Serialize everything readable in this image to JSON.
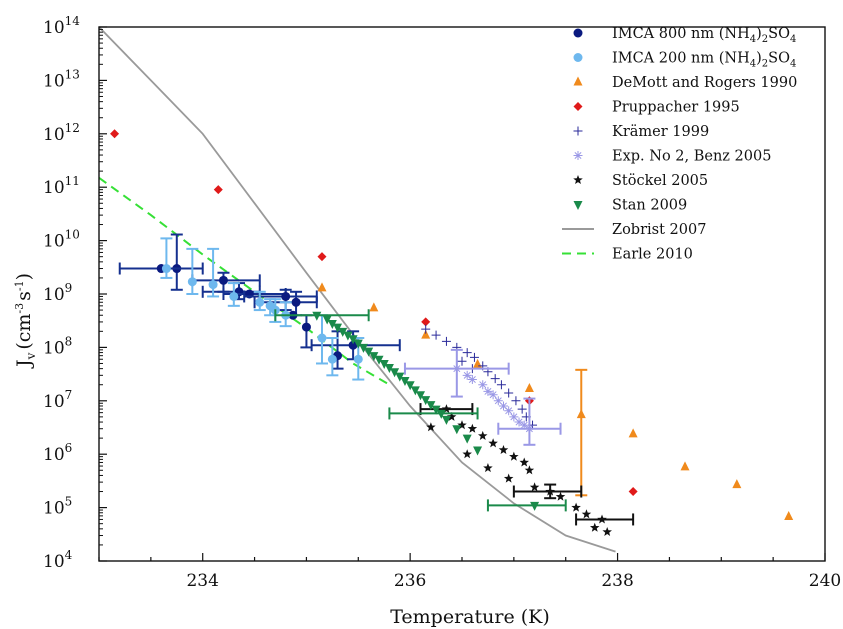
{
  "chart_data": {
    "type": "scatter",
    "xlabel": "Temperature (K)",
    "ylabel": {
      "main": "J",
      "sub": "v",
      "unit_open": "(cm",
      "unit_exp1": "-3",
      "unit_mid": "s",
      "unit_exp2": "-1",
      "unit_close": ")"
    },
    "xlim": [
      233,
      240
    ],
    "ylim_log10": [
      4,
      14
    ],
    "y_scale": "log",
    "x_ticks": [
      234,
      236,
      238,
      240
    ],
    "x_tick_labels": [
      "234",
      "236",
      "238",
      "240"
    ],
    "y_ticks_exp": [
      4,
      5,
      6,
      7,
      8,
      9,
      10,
      11,
      12,
      13,
      14
    ],
    "y_tick_base": "10",
    "grid": false,
    "legend_position": "top-right",
    "series": [
      {
        "name": "IMCA 800 nm (NH4)2SO4",
        "label": {
          "pre": "IMCA 800 nm (NH",
          "sub1": "4",
          "mid": ")",
          "sub2": "2",
          "post": "SO",
          "sub3": "4"
        },
        "marker": "circle",
        "color": "#0a1a80",
        "err_color": "#15308f",
        "points": [
          {
            "x": 233.75,
            "y": 3000000000.0,
            "yerr": [
              1200000000.0,
              13000000000.0
            ]
          },
          {
            "x": 234.2,
            "y": 1800000000.0,
            "yerr": [
              1100000000.0,
              2500000000.0
            ],
            "xerr": [
              233.9,
              234.55
            ]
          },
          {
            "x": 234.35,
            "y": 1100000000.0,
            "yerr": [
              800000000.0,
              1600000000.0
            ],
            "xerr": [
              234.0,
              234.55
            ]
          },
          {
            "x": 234.45,
            "y": 1000000000.0,
            "xerr": [
              234.2,
              234.8
            ]
          },
          {
            "x": 234.8,
            "y": 900000000.0,
            "yerr": [
              500000000.0,
              1200000000.0
            ],
            "xerr": [
              234.4,
              235.1
            ]
          },
          {
            "x": 234.9,
            "y": 700000000.0,
            "yerr": [
              400000000.0,
              1100000000.0
            ],
            "xerr": [
              234.5,
              235.1
            ]
          },
          {
            "x": 234.87,
            "y": 400000000.0
          },
          {
            "x": 235.0,
            "y": 240000000.0,
            "yerr": [
              100000000.0,
              400000000.0
            ]
          },
          {
            "x": 235.3,
            "y": 70000000.0,
            "yerr": [
              40000000.0,
              200000000.0
            ]
          },
          {
            "x": 235.45,
            "y": 110000000.0,
            "yerr": [
              60000000.0,
              200000000.0
            ],
            "xerr": [
              235.05,
              235.9
            ]
          },
          {
            "x": 233.6,
            "y": 3000000000.0,
            "xerr": [
              233.2,
              234.0
            ]
          }
        ]
      },
      {
        "name": "IMCA 200 nm (NH4)2SO4",
        "label": {
          "pre": "IMCA 200 nm (NH",
          "sub1": "4",
          "mid": ")",
          "sub2": "2",
          "post": "SO",
          "sub3": "4"
        },
        "marker": "circle",
        "color": "#6eb8ee",
        "err_color": "#6eb8ee",
        "points": [
          {
            "x": 233.65,
            "y": 3000000000.0,
            "yerr": [
              2000000000.0,
              11000000000.0
            ]
          },
          {
            "x": 233.9,
            "y": 1700000000.0,
            "yerr": [
              1000000000.0,
              7000000000.0
            ]
          },
          {
            "x": 234.1,
            "y": 1500000000.0,
            "yerr": [
              900000000.0,
              7000000000.0
            ]
          },
          {
            "x": 234.3,
            "y": 900000000.0,
            "yerr": [
              600000000.0,
              1600000000.0
            ]
          },
          {
            "x": 234.55,
            "y": 700000000.0,
            "yerr": [
              500000000.0,
              1100000000.0
            ]
          },
          {
            "x": 234.65,
            "y": 600000000.0,
            "yerr": [
              400000000.0,
              800000000.0
            ]
          },
          {
            "x": 234.7,
            "y": 500000000.0,
            "yerr": [
              300000000.0,
              800000000.0
            ]
          },
          {
            "x": 234.8,
            "y": 400000000.0,
            "yerr": [
              250000000.0,
              700000000.0
            ]
          },
          {
            "x": 235.15,
            "y": 150000000.0,
            "yerr": [
              50000000.0,
              400000000.0
            ]
          },
          {
            "x": 235.25,
            "y": 60000000.0,
            "yerr": [
              30000000.0,
              150000000.0
            ]
          },
          {
            "x": 235.5,
            "y": 60000000.0,
            "yerr": [
              25000000.0,
              150000000.0
            ]
          }
        ]
      },
      {
        "name": "DeMott and Rogers 1990",
        "marker": "triangle-up",
        "color": "#f08a1c",
        "err_color": "#f08a1c",
        "points": [
          {
            "x": 235.15,
            "y": 1300000000.0
          },
          {
            "x": 235.65,
            "y": 550000000.0
          },
          {
            "x": 236.15,
            "y": 170000000.0
          },
          {
            "x": 236.65,
            "y": 48000000.0
          },
          {
            "x": 237.15,
            "y": 17000000.0
          },
          {
            "x": 237.65,
            "y": 5500000.0,
            "yerr": [
              170000.0,
              38000000.0
            ]
          },
          {
            "x": 238.15,
            "y": 2400000.0
          },
          {
            "x": 238.65,
            "y": 580000.0
          },
          {
            "x": 239.15,
            "y": 270000.0
          },
          {
            "x": 239.65,
            "y": 68000.0
          }
        ]
      },
      {
        "name": "Pruppacher 1995",
        "marker": "diamond",
        "color": "#e01a1a",
        "points": [
          {
            "x": 233.15,
            "y": 1000000000000.0
          },
          {
            "x": 234.15,
            "y": 90000000000.0
          },
          {
            "x": 235.15,
            "y": 5000000000.0
          },
          {
            "x": 236.15,
            "y": 300000000.0
          },
          {
            "x": 237.15,
            "y": 10000000.0
          },
          {
            "x": 238.15,
            "y": 200000.0
          }
        ]
      },
      {
        "name": "Krämer 1999",
        "marker": "plus",
        "color": "#2a2a9a",
        "points": [
          {
            "x": 236.15,
            "y": 220000000.0
          },
          {
            "x": 236.25,
            "y": 170000000.0
          },
          {
            "x": 236.35,
            "y": 130000000.0
          },
          {
            "x": 236.45,
            "y": 100000000.0
          },
          {
            "x": 236.55,
            "y": 80000000.0
          },
          {
            "x": 236.62,
            "y": 65000000.0
          },
          {
            "x": 236.7,
            "y": 45000000.0
          },
          {
            "x": 236.75,
            "y": 35000000.0
          },
          {
            "x": 236.82,
            "y": 26000000.0
          },
          {
            "x": 236.88,
            "y": 20000000.0
          },
          {
            "x": 236.95,
            "y": 14000000.0
          },
          {
            "x": 237.02,
            "y": 10000000.0
          },
          {
            "x": 237.08,
            "y": 7000000.0
          },
          {
            "x": 237.12,
            "y": 5000000.0
          },
          {
            "x": 237.18,
            "y": 3500000.0
          },
          {
            "x": 236.5,
            "y": 55000000.0
          },
          {
            "x": 236.6,
            "y": 40000000.0
          }
        ]
      },
      {
        "name": "Exp. No 2, Benz 2005",
        "marker": "asterisk",
        "color": "#9a98e6",
        "err_color": "#9a98e6",
        "points": [
          {
            "x": 236.45,
            "y": 40000000.0,
            "yerr": [
              12000000.0,
              90000000.0
            ],
            "xerr": [
              235.95,
              236.95
            ]
          },
          {
            "x": 236.55,
            "y": 30000000.0
          },
          {
            "x": 236.6,
            "y": 25000000.0
          },
          {
            "x": 236.7,
            "y": 20000000.0
          },
          {
            "x": 236.75,
            "y": 15000000.0
          },
          {
            "x": 236.8,
            "y": 13000000.0
          },
          {
            "x": 236.85,
            "y": 10000000.0
          },
          {
            "x": 236.9,
            "y": 8000000.0
          },
          {
            "x": 236.95,
            "y": 6500000.0
          },
          {
            "x": 237.0,
            "y": 5000000.0
          },
          {
            "x": 237.05,
            "y": 4000000.0
          },
          {
            "x": 237.1,
            "y": 3500000.0
          },
          {
            "x": 237.15,
            "y": 3000000.0,
            "yerr": [
              1500000.0,
              11000000.0
            ],
            "xerr": [
              236.85,
              237.45
            ]
          }
        ]
      },
      {
        "name": "Stöckel 2005",
        "marker": "star",
        "color": "#111111",
        "err_color": "#111111",
        "points": [
          {
            "x": 236.35,
            "y": 7000000.0,
            "xerr": [
              236.1,
              236.6
            ]
          },
          {
            "x": 236.4,
            "y": 5000000.0
          },
          {
            "x": 236.5,
            "y": 3500000.0
          },
          {
            "x": 236.6,
            "y": 3000000.0
          },
          {
            "x": 236.7,
            "y": 2200000.0
          },
          {
            "x": 236.8,
            "y": 1600000.0
          },
          {
            "x": 236.9,
            "y": 1200000.0
          },
          {
            "x": 237.0,
            "y": 900000.0
          },
          {
            "x": 237.1,
            "y": 700000.0
          },
          {
            "x": 237.15,
            "y": 500000.0
          },
          {
            "x": 236.2,
            "y": 3200000.0
          },
          {
            "x": 236.55,
            "y": 1000000.0
          },
          {
            "x": 236.75,
            "y": 550000.0
          },
          {
            "x": 236.95,
            "y": 350000.0
          },
          {
            "x": 237.2,
            "y": 240000.0
          },
          {
            "x": 237.35,
            "y": 200000.0,
            "yerr": [
              150000.0,
              270000.0
            ],
            "xerr": [
              237.0,
              237.65
            ]
          },
          {
            "x": 237.45,
            "y": 160000.0
          },
          {
            "x": 237.6,
            "y": 100000.0
          },
          {
            "x": 237.7,
            "y": 75000.0
          },
          {
            "x": 237.85,
            "y": 60000.0,
            "xerr": [
              237.6,
              238.15
            ]
          },
          {
            "x": 237.78,
            "y": 42000.0
          },
          {
            "x": 237.9,
            "y": 35000.0
          }
        ]
      },
      {
        "name": "Stan 2009",
        "marker": "triangle-down",
        "color": "#1a8a4a",
        "err_color": "#1a8a4a",
        "points": [
          {
            "x": 235.1,
            "y": 400000000.0,
            "xerr": [
              234.7,
              235.6
            ]
          },
          {
            "x": 235.2,
            "y": 340000000.0
          },
          {
            "x": 235.25,
            "y": 280000000.0
          },
          {
            "x": 235.3,
            "y": 240000000.0
          },
          {
            "x": 235.35,
            "y": 200000000.0
          },
          {
            "x": 235.4,
            "y": 170000000.0
          },
          {
            "x": 235.45,
            "y": 145000000.0
          },
          {
            "x": 235.5,
            "y": 120000000.0
          },
          {
            "x": 235.55,
            "y": 100000000.0
          },
          {
            "x": 235.6,
            "y": 85000000.0
          },
          {
            "x": 235.65,
            "y": 70000000.0
          },
          {
            "x": 235.7,
            "y": 60000000.0
          },
          {
            "x": 235.75,
            "y": 50000000.0
          },
          {
            "x": 235.8,
            "y": 42000000.0
          },
          {
            "x": 235.85,
            "y": 35000000.0
          },
          {
            "x": 235.9,
            "y": 29000000.0
          },
          {
            "x": 235.95,
            "y": 24000000.0
          },
          {
            "x": 236.0,
            "y": 20000000.0
          },
          {
            "x": 236.05,
            "y": 16000000.0
          },
          {
            "x": 236.1,
            "y": 13000000.0
          },
          {
            "x": 236.15,
            "y": 10500000.0
          },
          {
            "x": 236.2,
            "y": 8500000.0
          },
          {
            "x": 236.25,
            "y": 7000000.0
          },
          {
            "x": 236.3,
            "y": 5800000.0,
            "xerr": [
              235.8,
              236.65
            ]
          },
          {
            "x": 236.35,
            "y": 4500000.0
          },
          {
            "x": 236.45,
            "y": 3000000.0
          },
          {
            "x": 236.55,
            "y": 2000000.0
          },
          {
            "x": 236.65,
            "y": 1200000.0
          },
          {
            "x": 237.2,
            "y": 110000.0,
            "xerr": [
              236.75,
              237.5
            ]
          }
        ]
      },
      {
        "name": "Zobrist 2007",
        "line": "solid",
        "color": "#9a9a9a",
        "points": [
          {
            "x": 233.0,
            "y": 100000000000000.0
          },
          {
            "x": 233.5,
            "y": 10000000000000.0
          },
          {
            "x": 234.0,
            "y": 1000000000000.0
          },
          {
            "x": 234.5,
            "y": 50000000000.0
          },
          {
            "x": 235.0,
            "y": 2500000000.0
          },
          {
            "x": 235.5,
            "y": 130000000.0
          },
          {
            "x": 236.0,
            "y": 8000000.0
          },
          {
            "x": 236.5,
            "y": 700000.0
          },
          {
            "x": 237.0,
            "y": 120000.0
          },
          {
            "x": 237.5,
            "y": 30000.0
          },
          {
            "x": 237.98,
            "y": 15000.0
          }
        ]
      },
      {
        "name": "Earle 2010",
        "line": "dashed",
        "color": "#36e036",
        "points": [
          {
            "x": 233.0,
            "y": 150000000000.0
          },
          {
            "x": 233.5,
            "y": 30000000000.0
          },
          {
            "x": 234.0,
            "y": 5500000000.0
          },
          {
            "x": 234.5,
            "y": 1100000000.0
          },
          {
            "x": 235.0,
            "y": 230000000.0
          },
          {
            "x": 235.45,
            "y": 50000000.0
          },
          {
            "x": 235.8,
            "y": 20000000.0
          }
        ]
      }
    ]
  }
}
